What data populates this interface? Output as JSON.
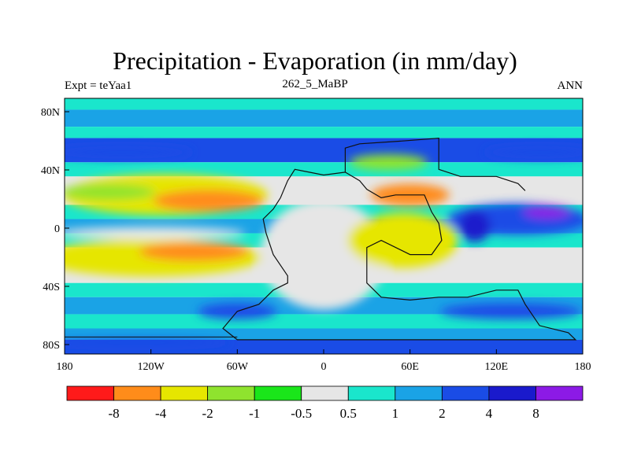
{
  "header": {
    "title": "Precipitation - Evaporation (in mm/day)",
    "left_label": "Expt = teYaa1",
    "center_label": "262_5_MaBP",
    "right_label": "ANN"
  },
  "colors": {
    "levels": [
      "#ff1a1a",
      "#ff8c1a",
      "#e6e600",
      "#8fe32e",
      "#1ae61a",
      "#e6e6e6",
      "#1ae6cc",
      "#1aa3e6",
      "#1a4ce6",
      "#1a1acc",
      "#8c1ae6"
    ]
  },
  "chart_data": {
    "type": "heatmap",
    "projection": "cylindrical equidistant",
    "x_ticks": [
      "180",
      "120W",
      "60W",
      "0",
      "60E",
      "120E",
      "180"
    ],
    "y_ticks": [
      "80N",
      "40N",
      "0",
      "40S",
      "80S"
    ],
    "xlim": [
      -180,
      180
    ],
    "ylim": [
      -90,
      90
    ],
    "colorbar": {
      "labels": [
        "-8",
        "-4",
        "-2",
        "-1",
        "-0.5",
        "0.5",
        "1",
        "2",
        "4",
        "8"
      ],
      "bins": 11
    },
    "field_summary": [
      {
        "region": "polar oceans (both hemispheres)",
        "value_bin": "1 to 2"
      },
      {
        "region": "subtropical oceans ~15-30N and ~15-35S",
        "value_bin": "-4 to -2"
      },
      {
        "region": "equatorial Pacific ~0-10N",
        "value_bin": "-0.5 to 0.5"
      },
      {
        "region": "supercontinent interior",
        "value_bin": "-0.5 to 0.5"
      },
      {
        "region": "eastern Tethys / equatorial east",
        "value_bin": "4 to 8"
      },
      {
        "region": "northern mid-latitudes ~45-65N",
        "value_bin": "2 to 4"
      },
      {
        "region": "southern mid-latitudes ~55-70S",
        "value_bin": "2 to 4"
      }
    ]
  }
}
